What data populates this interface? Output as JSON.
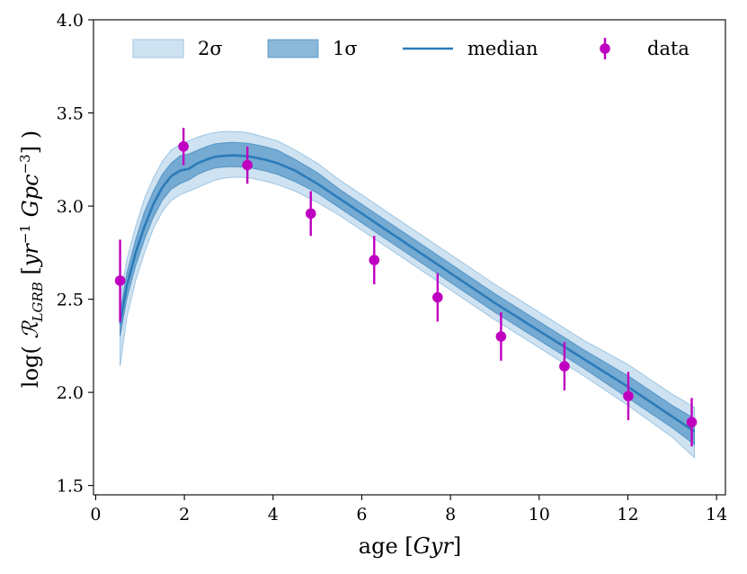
{
  "chart_data": {
    "type": "line",
    "xlabel": "age [Gyr]",
    "ylabel": "log( R_LGRB [yr^-1 Gpc^-3] )",
    "xlim": [
      -0.05,
      14.2
    ],
    "ylim": [
      1.45,
      4.0
    ],
    "xticks": [
      0,
      2,
      4,
      6,
      8,
      10,
      12,
      14
    ],
    "yticks": [
      1.5,
      2.0,
      2.5,
      3.0,
      3.5,
      4.0
    ],
    "xtick_labels": [
      "0",
      "2",
      "4",
      "6",
      "8",
      "10",
      "12",
      "14"
    ],
    "ytick_labels": [
      "1.5",
      "2.0",
      "2.5",
      "3.0",
      "3.5",
      "4.0"
    ],
    "legend_position": "top",
    "colors": {
      "median": "#2b7bb9",
      "band_1sigma": "#2b7bb9",
      "band_2sigma": "#9ec6e3",
      "data": "#c000c0"
    },
    "series": [
      {
        "name": "median",
        "x": [
          0.55,
          0.7,
          0.9,
          1.1,
          1.3,
          1.5,
          1.7,
          1.9,
          2.1,
          2.3,
          2.5,
          2.7,
          2.9,
          3.1,
          3.3,
          3.5,
          3.8,
          4.1,
          4.5,
          5.0,
          5.5,
          6.0,
          6.5,
          7.0,
          8.0,
          9.0,
          10.0,
          11.0,
          12.0,
          13.0,
          13.5
        ],
        "y": [
          2.37,
          2.57,
          2.75,
          2.89,
          3.01,
          3.1,
          3.16,
          3.19,
          3.2,
          3.23,
          3.25,
          3.265,
          3.27,
          3.272,
          3.27,
          3.265,
          3.25,
          3.23,
          3.19,
          3.12,
          3.04,
          2.96,
          2.88,
          2.8,
          2.64,
          2.48,
          2.33,
          2.18,
          2.03,
          1.87,
          1.79
        ]
      },
      {
        "name": "1σ",
        "x": [
          0.55,
          0.7,
          0.9,
          1.1,
          1.3,
          1.5,
          1.7,
          1.9,
          2.1,
          2.3,
          2.5,
          2.7,
          2.9,
          3.1,
          3.3,
          3.5,
          3.8,
          4.1,
          4.5,
          5.0,
          5.5,
          6.0,
          6.5,
          7.0,
          8.0,
          9.0,
          10.0,
          11.0,
          12.0,
          13.0,
          13.5
        ],
        "upper": [
          2.43,
          2.64,
          2.82,
          2.97,
          3.08,
          3.17,
          3.23,
          3.27,
          3.28,
          3.3,
          3.32,
          3.335,
          3.34,
          3.342,
          3.34,
          3.335,
          3.32,
          3.3,
          3.25,
          3.18,
          3.09,
          3.01,
          2.93,
          2.85,
          2.69,
          2.53,
          2.38,
          2.23,
          2.09,
          1.93,
          1.86
        ],
        "lower": [
          2.3,
          2.5,
          2.68,
          2.82,
          2.94,
          3.03,
          3.09,
          3.12,
          3.14,
          3.17,
          3.19,
          3.205,
          3.21,
          3.212,
          3.21,
          3.205,
          3.19,
          3.17,
          3.13,
          3.07,
          2.99,
          2.91,
          2.83,
          2.75,
          2.59,
          2.43,
          2.28,
          2.13,
          1.97,
          1.81,
          1.72
        ]
      },
      {
        "name": "2σ",
        "x": [
          0.55,
          0.7,
          0.9,
          1.1,
          1.3,
          1.5,
          1.7,
          1.9,
          2.1,
          2.3,
          2.5,
          2.7,
          2.9,
          3.1,
          3.3,
          3.5,
          3.8,
          4.1,
          4.5,
          5.0,
          5.5,
          6.0,
          6.5,
          7.0,
          8.0,
          9.0,
          10.0,
          11.0,
          12.0,
          13.0,
          13.5
        ],
        "upper": [
          2.5,
          2.71,
          2.89,
          3.04,
          3.15,
          3.24,
          3.3,
          3.33,
          3.35,
          3.37,
          3.385,
          3.395,
          3.4,
          3.4,
          3.398,
          3.39,
          3.37,
          3.35,
          3.3,
          3.23,
          3.14,
          3.06,
          2.98,
          2.9,
          2.74,
          2.58,
          2.43,
          2.28,
          2.15,
          1.99,
          1.92
        ],
        "lower": [
          2.14,
          2.4,
          2.6,
          2.75,
          2.88,
          2.97,
          3.03,
          3.06,
          3.08,
          3.1,
          3.12,
          3.14,
          3.15,
          3.155,
          3.155,
          3.15,
          3.135,
          3.115,
          3.08,
          3.02,
          2.95,
          2.87,
          2.79,
          2.71,
          2.55,
          2.39,
          2.24,
          2.09,
          1.93,
          1.76,
          1.65
        ]
      },
      {
        "name": "data",
        "x": [
          0.55,
          1.98,
          3.42,
          4.85,
          6.28,
          7.71,
          9.14,
          10.57,
          12.01,
          13.44
        ],
        "y": [
          2.6,
          3.32,
          3.22,
          2.96,
          2.71,
          2.51,
          2.3,
          2.14,
          1.98,
          1.84
        ],
        "err": [
          0.22,
          0.1,
          0.1,
          0.12,
          0.13,
          0.13,
          0.13,
          0.13,
          0.13,
          0.13
        ]
      }
    ],
    "legend": [
      {
        "label": "2σ",
        "kind": "band-2sigma"
      },
      {
        "label": "1σ",
        "kind": "band-1sigma"
      },
      {
        "label": "median",
        "kind": "line"
      },
      {
        "label": "data",
        "kind": "errorbar-point"
      }
    ]
  }
}
